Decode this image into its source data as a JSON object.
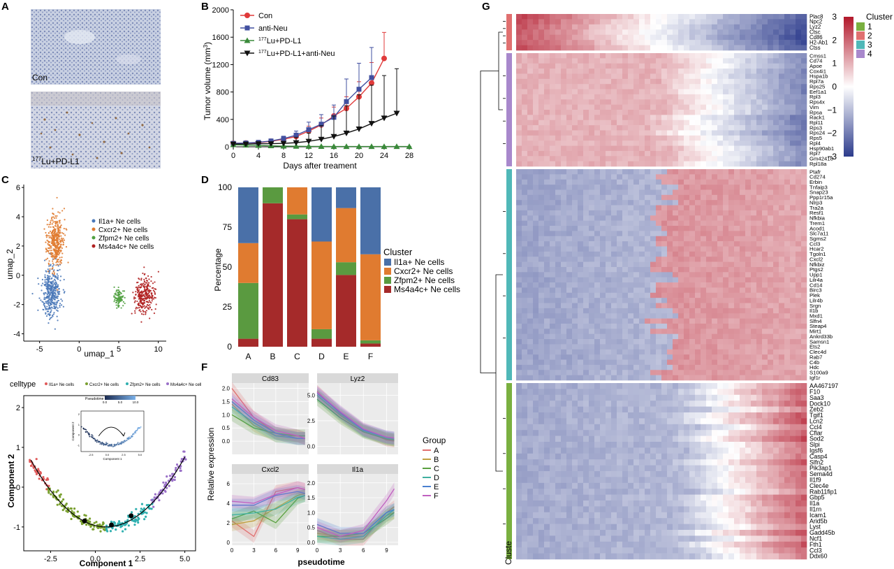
{
  "panels": {
    "A": {
      "letter": "A",
      "images": [
        {
          "label": "Con"
        },
        {
          "label_sup": "177",
          "label": "Lu+PD-L1"
        }
      ]
    },
    "B": {
      "letter": "B"
    },
    "C": {
      "letter": "C"
    },
    "D": {
      "letter": "D"
    },
    "E": {
      "letter": "E"
    },
    "F": {
      "letter": "F"
    },
    "G": {
      "letter": "G"
    }
  },
  "chart_data": [
    {
      "panel": "B",
      "type": "line",
      "xlabel": "Days after treament",
      "ylabel_text": "Tumor volume (mm",
      "ylabel_sup": "3",
      "ylabel_tail": ")",
      "x_ticks": [
        0,
        4,
        8,
        12,
        16,
        20,
        24,
        28
      ],
      "y_ticks": [
        0,
        400,
        800,
        1200,
        1600,
        2000
      ],
      "xlim": [
        0,
        28
      ],
      "ylim": [
        0,
        2000
      ],
      "series": [
        {
          "name": "Con",
          "color": "#e03a3a",
          "marker": "circle",
          "x": [
            0,
            2,
            4,
            6,
            8,
            10,
            12,
            14,
            16,
            18,
            20,
            22,
            24
          ],
          "y": [
            50,
            55,
            60,
            80,
            110,
            150,
            230,
            320,
            450,
            560,
            730,
            930,
            1290
          ],
          "err": [
            15,
            15,
            20,
            25,
            30,
            45,
            70,
            100,
            130,
            170,
            220,
            300,
            380
          ]
        },
        {
          "name": "anti-Neu",
          "color": "#4250a0",
          "marker": "square",
          "x": [
            0,
            2,
            4,
            6,
            8,
            10,
            12,
            14,
            16,
            18,
            20,
            22
          ],
          "y": [
            50,
            55,
            65,
            85,
            120,
            170,
            250,
            330,
            430,
            660,
            840,
            1010
          ],
          "err": [
            15,
            15,
            20,
            25,
            35,
            60,
            110,
            140,
            180,
            330,
            380,
            440
          ]
        },
        {
          "name_sup": "177",
          "name": "Lu+PD-L1",
          "color": "#3a8a3a",
          "marker": "triangle-up",
          "x": [
            0,
            2,
            4,
            6,
            8,
            10,
            12,
            14,
            16,
            18,
            20,
            22,
            24,
            26,
            28
          ],
          "y": [
            30,
            25,
            20,
            15,
            10,
            8,
            6,
            5,
            4,
            4,
            4,
            4,
            4,
            4,
            4
          ],
          "err": [
            8,
            6,
            5,
            4,
            3,
            2,
            2,
            2,
            2,
            2,
            2,
            2,
            2,
            2,
            2
          ]
        },
        {
          "name_sup": "177",
          "name": "Lu+PD-L1+anti-Neu",
          "color": "#111111",
          "marker": "triangle-down",
          "x": [
            0,
            2,
            4,
            6,
            8,
            10,
            12,
            14,
            16,
            18,
            20,
            22,
            24,
            26
          ],
          "y": [
            40,
            40,
            45,
            45,
            50,
            60,
            80,
            110,
            150,
            200,
            260,
            340,
            420,
            490
          ],
          "err": [
            10,
            10,
            12,
            12,
            20,
            80,
            120,
            200,
            300,
            400,
            500,
            560,
            620,
            650
          ]
        }
      ]
    },
    {
      "panel": "C",
      "type": "scatter",
      "xlabel": "umap_1",
      "ylabel": "umap_2",
      "x_ticks": [
        -5,
        0,
        5,
        10
      ],
      "y_ticks": [
        -4,
        -2,
        0,
        2,
        4,
        6
      ],
      "xlim": [
        -7,
        11
      ],
      "ylim": [
        -4.5,
        6.2
      ],
      "series": [
        {
          "name": "Il1a+ Ne cells",
          "color": "#4a78b8",
          "cx": -3.5,
          "cy": -1.2,
          "sx": 1.1,
          "sy": 1.6,
          "n": 380
        },
        {
          "name": "Cxcr2+ Ne cells",
          "color": "#e07b30",
          "cx": -3.0,
          "cy": 2.3,
          "sx": 1.0,
          "sy": 1.6,
          "n": 380
        },
        {
          "name": "Zfpm2+ Ne cells",
          "color": "#50a040",
          "cx": 5.0,
          "cy": -1.6,
          "sx": 0.6,
          "sy": 0.6,
          "n": 90
        },
        {
          "name": "Ms4a4c+ Ne cells",
          "color": "#b02020",
          "cx": 8.3,
          "cy": -1.4,
          "sx": 1.1,
          "sy": 1.1,
          "n": 280
        }
      ]
    },
    {
      "panel": "D",
      "type": "bar",
      "stacked": true,
      "ylabel": "Percentage",
      "categories": [
        "A",
        "B",
        "C",
        "D",
        "E",
        "F"
      ],
      "y_ticks": [
        0,
        25,
        50,
        75,
        100
      ],
      "ylim": [
        0,
        100
      ],
      "legend_title": "Cluster",
      "series": [
        {
          "name": "Ms4a4c+ Ne cells",
          "color": "#a52a2a",
          "values": [
            5,
            90,
            80,
            5,
            45,
            2
          ]
        },
        {
          "name": "Zfpm2+ Ne cells",
          "color": "#5a9a40",
          "values": [
            35,
            10,
            3,
            6,
            8,
            2
          ]
        },
        {
          "name": "Cxcr2+ Ne cells",
          "color": "#e07b30",
          "values": [
            25,
            0,
            17,
            55,
            34,
            54
          ]
        },
        {
          "name": "Il1a+ Ne cells",
          "color": "#4a70a8",
          "values": [
            35,
            0,
            0,
            34,
            13,
            42
          ]
        }
      ]
    },
    {
      "panel": "E",
      "type": "scatter",
      "legend_title": "celltype",
      "xlabel": "Component 1",
      "ylabel": "Component 2",
      "x_ticks": [
        -2.5,
        0.0,
        2.5,
        5.0
      ],
      "y_ticks": [
        -1,
        0,
        1,
        2
      ],
      "xlim": [
        -4.0,
        5.6
      ],
      "ylim": [
        -1.6,
        2.3
      ],
      "series": [
        {
          "name": "Il1a+ Ne cells",
          "color": "#e05a5a"
        },
        {
          "name": "Cxcr2+ Ne cells",
          "color": "#7aa030"
        },
        {
          "name": "Zfpm2+ Ne cells",
          "color": "#30b0b0"
        },
        {
          "name": "Ms4a4c+ Ne cells",
          "color": "#9a70c8"
        }
      ],
      "inset": {
        "title": "Pseudotime",
        "ticks": [
          0.0,
          5.0,
          10.0
        ],
        "xlabel": "Component 1",
        "ylabel": "Component 2",
        "x_ticks": [
          -2.5,
          0.0,
          2.5,
          5.0
        ],
        "y_ticks": [
          -1,
          0,
          1,
          2
        ]
      }
    },
    {
      "panel": "F",
      "type": "line",
      "xlabel": "pseudotime",
      "ylabel": "Relative expression",
      "legend_title": "Group",
      "groups": [
        {
          "name": "A",
          "color": "#e07070"
        },
        {
          "name": "B",
          "color": "#c0a040"
        },
        {
          "name": "C",
          "color": "#5aa040"
        },
        {
          "name": "D",
          "color": "#40b0a0"
        },
        {
          "name": "E",
          "color": "#4a80d0"
        },
        {
          "name": "F",
          "color": "#c060c0"
        }
      ],
      "facets": [
        {
          "title": "Cd83",
          "y_ticks": [
            0.0,
            0.5,
            1.0,
            1.5,
            2.0
          ],
          "ylim": [
            -0.5,
            2.2
          ],
          "x_ticks": [
            0,
            3,
            6,
            9
          ],
          "xlim": [
            0,
            10.5
          ],
          "x": [
            0,
            3,
            6,
            9,
            10
          ],
          "series": {
            "A": [
              2.0,
              0.9,
              0.3,
              0.1,
              0.1
            ],
            "B": [
              1.4,
              0.6,
              0.2,
              0.2,
              0.1
            ],
            "C": [
              1.0,
              0.5,
              0.3,
              0.2,
              0.2
            ],
            "D": [
              1.3,
              0.7,
              0.2,
              0.1,
              0.1
            ],
            "E": [
              1.5,
              0.8,
              0.3,
              0.1,
              0.1
            ],
            "F": [
              1.6,
              0.9,
              0.4,
              0.2,
              0.1
            ]
          }
        },
        {
          "title": "Lyz2",
          "y_ticks": [
            0.0,
            2.5,
            5.0
          ],
          "ylim": [
            -0.8,
            6.2
          ],
          "x_ticks": [
            0,
            3,
            6,
            9
          ],
          "xlim": [
            0,
            10.5
          ],
          "x": [
            0,
            3,
            6,
            9,
            10
          ],
          "series": {
            "A": [
              5.4,
              3.2,
              1.6,
              0.6,
              0.5
            ],
            "B": [
              5.0,
              3.0,
              1.5,
              0.8,
              0.6
            ],
            "C": [
              4.6,
              2.8,
              1.4,
              0.7,
              0.6
            ],
            "D": [
              5.0,
              3.1,
              1.5,
              0.8,
              0.7
            ],
            "E": [
              5.2,
              3.3,
              1.6,
              0.9,
              0.8
            ],
            "F": [
              5.3,
              3.4,
              1.7,
              0.9,
              0.8
            ]
          }
        },
        {
          "title": "Cxcl2",
          "y_ticks": [
            0,
            2,
            4,
            6
          ],
          "ylim": [
            -0.3,
            7.0
          ],
          "x_ticks": [
            0,
            3,
            6,
            9
          ],
          "xlim": [
            0,
            10.5
          ],
          "x": [
            0,
            3,
            6,
            9,
            10
          ],
          "series": {
            "A": [
              2.2,
              0.6,
              5.2,
              5.6,
              5.4
            ],
            "B": [
              1.8,
              2.2,
              3.5,
              4.8,
              5.0
            ],
            "C": [
              2.4,
              3.2,
              2.0,
              4.5,
              4.8
            ],
            "D": [
              2.8,
              3.0,
              3.4,
              4.6,
              4.8
            ],
            "E": [
              3.8,
              3.8,
              4.8,
              5.2,
              5.0
            ],
            "F": [
              4.2,
              4.0,
              4.9,
              5.6,
              5.4
            ]
          }
        },
        {
          "title": "Il1a",
          "y_ticks": [
            0.0,
            0.5,
            1.0,
            1.5,
            2.0
          ],
          "ylim": [
            -0.1,
            2.3
          ],
          "x_ticks": [
            0,
            3,
            6,
            9
          ],
          "xlim": [
            0,
            10.5
          ],
          "x": [
            0,
            3,
            6,
            9,
            10
          ],
          "series": {
            "A": [
              0.4,
              0.1,
              0.1,
              1.0,
              1.2
            ],
            "B": [
              0.3,
              0.2,
              0.2,
              0.9,
              1.0
            ],
            "C": [
              0.2,
              0.2,
              0.3,
              0.8,
              1.0
            ],
            "D": [
              0.2,
              0.1,
              0.2,
              0.9,
              1.1
            ],
            "E": [
              0.6,
              0.3,
              0.3,
              1.0,
              1.1
            ],
            "F": [
              0.5,
              0.2,
              0.4,
              1.4,
              1.8
            ]
          }
        }
      ]
    },
    {
      "panel": "G",
      "type": "heatmap",
      "annotation_label": "Cluste",
      "colorbar_ticks": [
        3,
        2,
        1,
        0,
        -1,
        -2,
        -3
      ],
      "colorbar_tick_labels": [
        "3",
        "2",
        "1",
        "0",
        "−1",
        "−2",
        "−3"
      ],
      "legend_title": "Cluster",
      "clusters": [
        {
          "name": "1",
          "color": "#7ab040"
        },
        {
          "name": "2",
          "color": "#e07070"
        },
        {
          "name": "3",
          "color": "#50b8b8"
        },
        {
          "name": "4",
          "color": "#a888cc"
        }
      ],
      "gene_blocks": [
        {
          "cluster": "2",
          "pattern": "early",
          "genes": [
            "Plac8",
            "Npc2",
            "Lyz2",
            "Ctsc",
            "Cd86",
            "H2-Ab1",
            "Ctss"
          ]
        },
        {
          "cluster": "4",
          "pattern": "mid-early",
          "genes": [
            "Cmss1",
            "Cd74",
            "Apoe",
            "Cox4i1",
            "Hspa1b",
            "Rpl7a",
            "Rps25",
            "Eef1a1",
            "Rpl3",
            "Rps4x",
            "Vim",
            "Rpsa",
            "Rack1",
            "Rpl11",
            "Rps3",
            "Rps24",
            "Rps5",
            "Rpl4",
            "Hsp90ab1",
            "Rpl7",
            "Gm42418",
            "Rpl18a"
          ]
        },
        {
          "cluster": "3",
          "pattern": "mid-late",
          "genes": [
            "Ptafr",
            "Cd274",
            "Erbin",
            "Tnfaip3",
            "Snap23",
            "Ppp1r15a",
            "Nlrp3",
            "Tra2a",
            "Resf1",
            "Nfkbia",
            "Trem1",
            "Acod1",
            "Slc7a11",
            "Sgms2",
            "Ccl3",
            "Hcar2",
            "Tgoln1",
            "Cxcl2",
            "Nfkbiz",
            "Ptgs2",
            "Upp1",
            "Lilr4a",
            "Cd14",
            "Birc3",
            "Plek",
            "Lilr4b",
            "Srgn",
            "Il1b",
            "Mxd1",
            "Slfn4",
            "Steap4",
            "Mirt1",
            "Ankrd33b",
            "Samsn1",
            "Ets2",
            "Clec4d",
            "Rab7",
            "C4b",
            "Hdc",
            "S100a9",
            "Igf1r"
          ]
        },
        {
          "cluster": "1",
          "pattern": "late",
          "genes": [
            "AA467197",
            "F10",
            "Saa3",
            "Dock10",
            "Zeb2",
            "Tgif1",
            "Lcn2",
            "Ccl4",
            "Cflar",
            "Sod2",
            "Slpi",
            "Igsf6",
            "Casp4",
            "Slfn2",
            "Pik3ap1",
            "Sema4d",
            "Il1f9",
            "Clec4e",
            "Rab11fip1",
            "Gbp5",
            "Il1a",
            "Il1rn",
            "Icam1",
            "Arid5b",
            "Lyst",
            "Gadd45b",
            "Ncf1",
            "Fth1",
            "Ccl3",
            "Ddx60"
          ]
        }
      ]
    }
  ]
}
